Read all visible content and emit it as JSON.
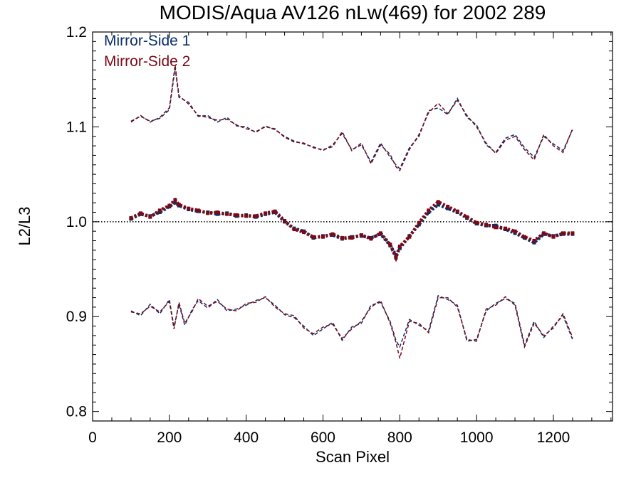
{
  "chart_data": {
    "type": "line",
    "title": "MODIS/Aqua AV126 nLw(469) for 2002 289",
    "xlabel": "Scan Pixel",
    "ylabel": "L2/L3",
    "xlim": [
      0,
      1354
    ],
    "ylim": [
      0.79,
      1.2
    ],
    "x_ticks": [
      0,
      200,
      400,
      600,
      800,
      1000,
      1200
    ],
    "x_tick_labels": [
      "0",
      "200",
      "400",
      "600",
      "800",
      "1000",
      "1200"
    ],
    "y_ticks": [
      0.8,
      0.9,
      1.0,
      1.1,
      1.2
    ],
    "y_tick_labels": [
      "0.8",
      "0.9",
      "1.0",
      "1.1",
      "1.2"
    ],
    "reference_line": 1.0,
    "legend_position": "top-left",
    "x": [
      100,
      125,
      150,
      175,
      200,
      215,
      225,
      250,
      275,
      300,
      325,
      350,
      375,
      400,
      425,
      450,
      475,
      500,
      525,
      550,
      575,
      600,
      625,
      650,
      675,
      700,
      725,
      750,
      775,
      790,
      800,
      825,
      850,
      875,
      900,
      925,
      950,
      975,
      1000,
      1025,
      1050,
      1075,
      1100,
      1125,
      1150,
      1175,
      1200,
      1225,
      1250
    ],
    "series": [
      {
        "name": "Mirror-Side 1",
        "color": "#0a2f6b",
        "mean": [
          1.003,
          1.008,
          1.006,
          1.01,
          1.016,
          1.02,
          1.017,
          1.013,
          1.011,
          1.01,
          1.008,
          1.009,
          1.006,
          1.007,
          1.005,
          1.008,
          1.01,
          1.0,
          0.993,
          0.99,
          0.983,
          0.985,
          0.986,
          0.982,
          0.984,
          0.985,
          0.983,
          0.987,
          0.975,
          0.965,
          0.972,
          0.985,
          0.997,
          1.01,
          1.018,
          1.014,
          1.01,
          1.004,
          0.998,
          0.996,
          0.996,
          0.992,
          0.988,
          0.983,
          0.978,
          0.987,
          0.985,
          0.987,
          0.987
        ],
        "upper": [
          1.106,
          1.111,
          1.106,
          1.109,
          1.118,
          1.162,
          1.131,
          1.126,
          1.111,
          1.112,
          1.105,
          1.11,
          1.101,
          1.1,
          1.094,
          1.101,
          1.097,
          1.09,
          1.085,
          1.082,
          1.079,
          1.075,
          1.081,
          1.093,
          1.076,
          1.081,
          1.063,
          1.083,
          1.068,
          1.06,
          1.056,
          1.078,
          1.09,
          1.117,
          1.12,
          1.113,
          1.13,
          1.11,
          1.102,
          1.081,
          1.073,
          1.088,
          1.092,
          1.078,
          1.068,
          1.09,
          1.082,
          1.075,
          1.097
        ]
      },
      {
        "name": "Mirror-Side 2",
        "color": "#7a0a16",
        "mean": [
          1.004,
          1.009,
          1.005,
          1.012,
          1.017,
          1.023,
          1.018,
          1.014,
          1.012,
          1.009,
          1.01,
          1.008,
          1.007,
          1.006,
          1.006,
          1.009,
          1.011,
          1.001,
          0.992,
          0.989,
          0.984,
          0.984,
          0.987,
          0.983,
          0.983,
          0.986,
          0.982,
          0.988,
          0.976,
          0.962,
          0.974,
          0.984,
          0.999,
          1.012,
          1.021,
          1.016,
          1.011,
          1.005,
          0.999,
          0.997,
          0.994,
          0.993,
          0.99,
          0.984,
          0.98,
          0.988,
          0.984,
          0.988,
          0.988
        ],
        "upper": [
          1.105,
          1.112,
          1.105,
          1.11,
          1.12,
          1.165,
          1.133,
          1.124,
          1.112,
          1.11,
          1.107,
          1.108,
          1.102,
          1.098,
          1.095,
          1.1,
          1.098,
          1.089,
          1.084,
          1.083,
          1.078,
          1.076,
          1.079,
          1.095,
          1.075,
          1.083,
          1.061,
          1.081,
          1.071,
          1.058,
          1.054,
          1.076,
          1.092,
          1.115,
          1.125,
          1.114,
          1.128,
          1.112,
          1.1,
          1.083,
          1.072,
          1.086,
          1.09,
          1.076,
          1.065,
          1.092,
          1.08,
          1.073,
          1.098
        ]
      }
    ],
    "lower_x": [
      100,
      125,
      150,
      175,
      200,
      212,
      225,
      240,
      260,
      275,
      300,
      325,
      350,
      375,
      400,
      425,
      450,
      475,
      500,
      525,
      550,
      575,
      600,
      625,
      650,
      675,
      700,
      725,
      750,
      775,
      790,
      800,
      825,
      850,
      875,
      900,
      925,
      950,
      975,
      1000,
      1025,
      1050,
      1075,
      1100,
      1125,
      1150,
      1175,
      1200,
      1225,
      1250
    ],
    "lower": [
      [
        0.906,
        0.901,
        0.913,
        0.903,
        0.918,
        0.889,
        0.913,
        0.891,
        0.908,
        0.917,
        0.909,
        0.918,
        0.906,
        0.908,
        0.912,
        0.917,
        0.92,
        0.912,
        0.902,
        0.899,
        0.89,
        0.88,
        0.887,
        0.894,
        0.875,
        0.889,
        0.893,
        0.912,
        0.915,
        0.895,
        0.875,
        0.868,
        0.897,
        0.891,
        0.885,
        0.922,
        0.918,
        0.912,
        0.874,
        0.876,
        0.906,
        0.914,
        0.919,
        0.914,
        0.87,
        0.895,
        0.878,
        0.89,
        0.901,
        0.876
      ],
      [
        0.905,
        0.903,
        0.911,
        0.905,
        0.916,
        0.887,
        0.915,
        0.893,
        0.906,
        0.919,
        0.911,
        0.916,
        0.908,
        0.906,
        0.914,
        0.915,
        0.921,
        0.91,
        0.903,
        0.901,
        0.888,
        0.882,
        0.889,
        0.892,
        0.877,
        0.887,
        0.895,
        0.91,
        0.917,
        0.893,
        0.873,
        0.856,
        0.895,
        0.893,
        0.883,
        0.92,
        0.92,
        0.91,
        0.876,
        0.874,
        0.908,
        0.912,
        0.921,
        0.912,
        0.868,
        0.893,
        0.88,
        0.888,
        0.903,
        0.878
      ]
    ]
  }
}
